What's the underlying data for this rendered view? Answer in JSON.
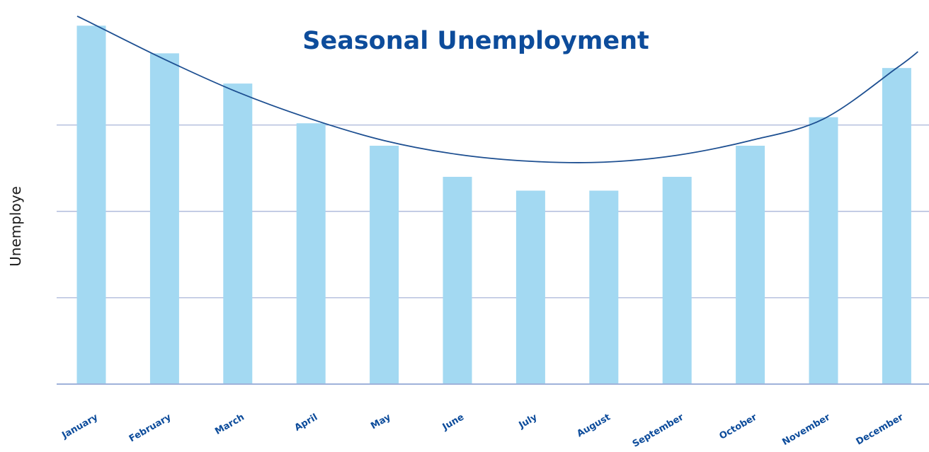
{
  "chart_data": {
    "type": "bar",
    "title": "Seasonal Unemployment",
    "xlabel": "",
    "ylabel": "Unemploye",
    "categories": [
      "January",
      "February",
      "March",
      "April",
      "May",
      "June",
      "July",
      "August",
      "September",
      "October",
      "November",
      "December"
    ],
    "values": [
      4.15,
      3.83,
      3.48,
      3.02,
      2.76,
      2.4,
      2.24,
      2.24,
      2.4,
      2.76,
      3.09,
      3.66
    ],
    "trendline": {
      "type": "quadratic",
      "values": [
        4.18,
        3.76,
        3.38,
        3.07,
        2.82,
        2.66,
        2.58,
        2.57,
        2.65,
        2.82,
        3.07,
        3.66
      ]
    },
    "ylim": [
      0,
      4.3
    ],
    "gridlines": [
      1,
      2,
      3
    ],
    "grid": true,
    "legend": "none",
    "colors": {
      "bar": "#a3d9f2",
      "trendline": "#1d4f91",
      "title": "#0d4c9b",
      "tick_label": "#0d4c9b",
      "grid": "#a9b5d8",
      "axis": "#9fb2da"
    }
  }
}
